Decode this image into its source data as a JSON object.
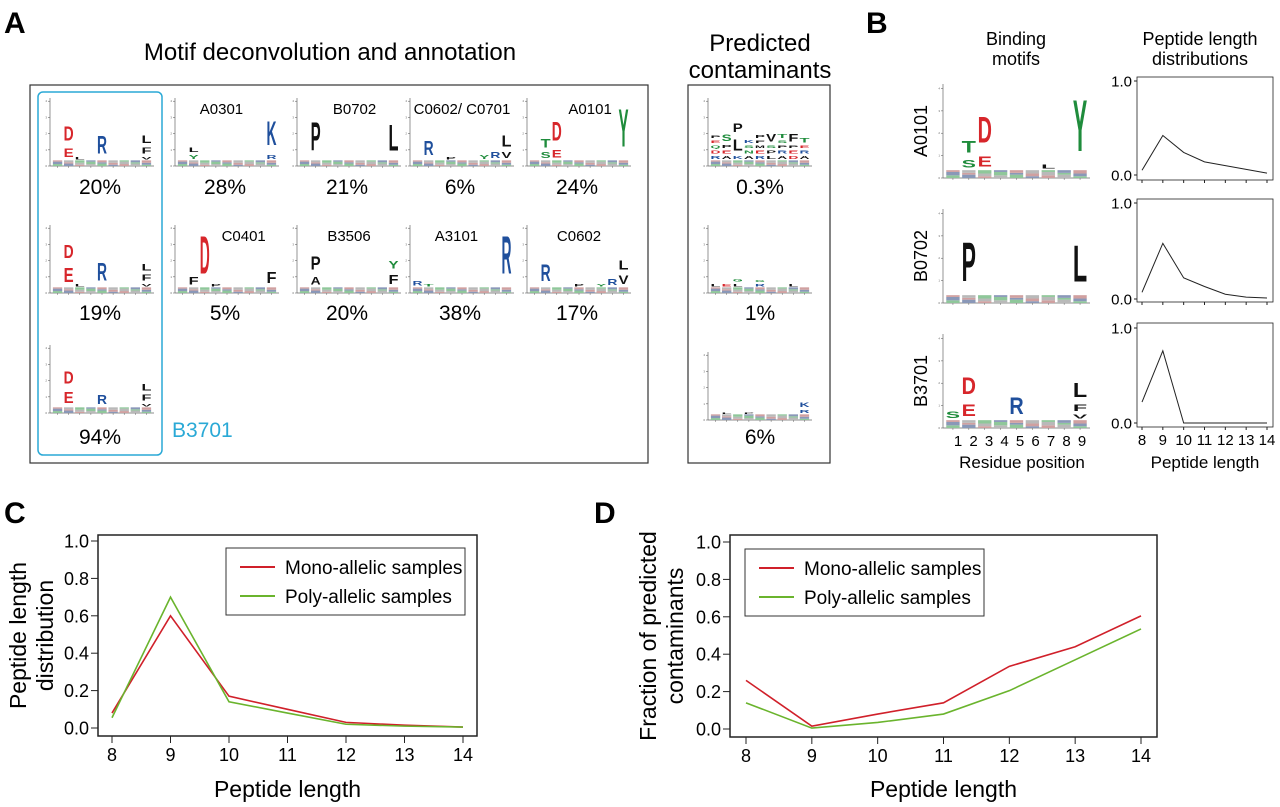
{
  "panel_labels": [
    "A",
    "B",
    "C",
    "D"
  ],
  "letter_colors": {
    "D": "#d7262b",
    "E": "#d7262b",
    "R": "#1f4f9c",
    "K": "#1f4f9c",
    "H": "#1f4f9c",
    "S": "#1f8c3c",
    "T": "#1f8c3c",
    "Y": "#1f8c3c",
    "N": "#1f8c3c",
    "Q": "#1f8c3c",
    "G": "#1f8c3c",
    "C": "#1f8c3c",
    "default": "#111111"
  },
  "highlight_color": "#2aa9d6",
  "logo_axis_ticks": [
    "0",
    "1",
    "2",
    "3",
    "4"
  ],
  "panel_A": {
    "title": "Motif deconvolution and annotation",
    "contaminants_title": [
      "Predicted",
      "contaminants"
    ],
    "highlighted_allele": "B3701",
    "logos": [
      {
        "allele": "",
        "percent": "20%",
        "letters": [
          [
            2,
            "E",
            0.9
          ],
          [
            2,
            "D",
            1.5
          ],
          [
            3,
            "L",
            0.3
          ],
          [
            5,
            "R",
            1.9
          ],
          [
            9,
            "V",
            0.3
          ],
          [
            9,
            "F",
            0.6
          ],
          [
            9,
            "L",
            0.8
          ]
        ]
      },
      {
        "allele": "A0301",
        "percent": "28%",
        "letters": [
          [
            2,
            "Y",
            0.4
          ],
          [
            2,
            "L",
            0.5
          ],
          [
            9,
            "R",
            0.4
          ],
          [
            9,
            "K",
            2.6
          ]
        ]
      },
      {
        "allele": "B0702",
        "percent": "21%",
        "letters": [
          [
            2,
            "P",
            3.0
          ],
          [
            9,
            "L",
            2.8
          ]
        ]
      },
      {
        "allele": "C0602/ C0701",
        "percent": "6%",
        "letters": [
          [
            2,
            "R",
            1.5
          ],
          [
            4,
            "P",
            0.3
          ],
          [
            7,
            "Y",
            0.4
          ],
          [
            8,
            "R",
            0.6
          ],
          [
            9,
            "V",
            0.6
          ],
          [
            9,
            "L",
            1.2
          ]
        ]
      },
      {
        "allele": "A0101",
        "percent": "24%",
        "letters": [
          [
            2,
            "S",
            0.6
          ],
          [
            2,
            "T",
            0.9
          ],
          [
            3,
            "E",
            0.8
          ],
          [
            3,
            "D",
            2.0
          ],
          [
            9,
            "Y",
            4.0
          ]
        ]
      },
      {
        "allele": "",
        "percent": "19%",
        "letters": [
          [
            2,
            "E",
            1.5
          ],
          [
            2,
            "D",
            1.4
          ],
          [
            3,
            "L",
            0.3
          ],
          [
            5,
            "R",
            1.9
          ],
          [
            9,
            "V",
            0.3
          ],
          [
            9,
            "F",
            0.6
          ],
          [
            9,
            "L",
            0.7
          ]
        ]
      },
      {
        "allele": "C0401",
        "percent": "5%",
        "letters": [
          [
            2,
            "F",
            0.8
          ],
          [
            3,
            "D",
            4.0
          ],
          [
            4,
            "P",
            0.3
          ],
          [
            9,
            "F",
            1.2
          ]
        ]
      },
      {
        "allele": "B3506",
        "percent": "20%",
        "letters": [
          [
            2,
            "A",
            0.8
          ],
          [
            2,
            "P",
            1.4
          ],
          [
            9,
            "F",
            1.0
          ],
          [
            9,
            "Y",
            0.8
          ]
        ]
      },
      {
        "allele": "A3101",
        "percent": "38%",
        "letters": [
          [
            1,
            "R",
            0.5
          ],
          [
            2,
            "T",
            0.3
          ],
          [
            9,
            "R",
            4.0
          ]
        ]
      },
      {
        "allele": "C0602",
        "percent": "17%",
        "letters": [
          [
            2,
            "R",
            1.8
          ],
          [
            5,
            "P",
            0.3
          ],
          [
            7,
            "Y",
            0.3
          ],
          [
            8,
            "R",
            0.6
          ],
          [
            9,
            "V",
            0.9
          ],
          [
            9,
            "L",
            1.0
          ]
        ]
      },
      {
        "allele": "",
        "percent": "94%",
        "letters": [
          [
            2,
            "E",
            1.2
          ],
          [
            2,
            "D",
            1.3
          ],
          [
            5,
            "R",
            1.0
          ],
          [
            9,
            "V",
            0.3
          ],
          [
            9,
            "F",
            0.6
          ],
          [
            9,
            "L",
            0.7
          ]
        ]
      }
    ],
    "contaminants": [
      {
        "percent": "0.3%",
        "letters": [
          [
            1,
            "R",
            0.35
          ],
          [
            1,
            "D",
            0.35
          ],
          [
            1,
            "Q",
            0.3
          ],
          [
            1,
            "E",
            0.3
          ],
          [
            1,
            "P",
            0.3
          ],
          [
            2,
            "A",
            0.35
          ],
          [
            2,
            "E",
            0.35
          ],
          [
            2,
            "P",
            0.35
          ],
          [
            2,
            "S",
            0.7
          ],
          [
            3,
            "K",
            0.35
          ],
          [
            3,
            "L",
            1.2
          ],
          [
            3,
            "P",
            0.9
          ],
          [
            4,
            "A",
            0.35
          ],
          [
            4,
            "N",
            0.35
          ],
          [
            4,
            "S",
            0.3
          ],
          [
            4,
            "K",
            0.35
          ],
          [
            5,
            "R",
            0.35
          ],
          [
            5,
            "E",
            0.35
          ],
          [
            5,
            "M",
            0.3
          ],
          [
            5,
            "F",
            0.3
          ],
          [
            5,
            "P",
            0.35
          ],
          [
            6,
            "L",
            0.35
          ],
          [
            6,
            "P",
            0.35
          ],
          [
            6,
            "S",
            0.3
          ],
          [
            6,
            "V",
            0.8
          ],
          [
            7,
            "A",
            0.35
          ],
          [
            7,
            "R",
            0.35
          ],
          [
            7,
            "P",
            0.3
          ],
          [
            7,
            "S",
            0.3
          ],
          [
            7,
            "T",
            0.4
          ],
          [
            8,
            "D",
            0.35
          ],
          [
            8,
            "E",
            0.35
          ],
          [
            8,
            "P",
            0.3
          ],
          [
            8,
            "F",
            0.8
          ],
          [
            9,
            "A",
            0.35
          ],
          [
            9,
            "R",
            0.35
          ],
          [
            9,
            "E",
            0.3
          ],
          [
            9,
            "T",
            0.5
          ]
        ]
      },
      {
        "percent": "1%",
        "letters": [
          [
            1,
            "L",
            0.3
          ],
          [
            2,
            "E",
            0.3
          ],
          [
            3,
            "L",
            0.3
          ],
          [
            3,
            "G",
            0.3
          ],
          [
            5,
            "R",
            0.3
          ],
          [
            5,
            "G",
            0.2
          ],
          [
            8,
            "L",
            0.3
          ]
        ]
      },
      {
        "percent": "6%",
        "letters": [
          [
            2,
            "L",
            0.15
          ],
          [
            4,
            "P",
            0.1
          ],
          [
            9,
            "R",
            0.35
          ],
          [
            9,
            "K",
            0.45
          ]
        ]
      }
    ]
  },
  "panel_B": {
    "col1_title": [
      "Binding",
      "motifs"
    ],
    "col2_title": [
      "Peptide length",
      "distributions"
    ],
    "rows": [
      {
        "allele": "A0101",
        "letters": [
          [
            2,
            "S",
            0.6
          ],
          [
            2,
            "T",
            0.9
          ],
          [
            3,
            "E",
            0.8
          ],
          [
            3,
            "D",
            2.0
          ],
          [
            7,
            "L",
            0.3
          ],
          [
            9,
            "Y",
            4.0
          ]
        ]
      },
      {
        "allele": "B0702",
        "letters": [
          [
            2,
            "P",
            3.0
          ],
          [
            9,
            "L",
            2.8
          ]
        ]
      },
      {
        "allele": "B3701",
        "letters": [
          [
            1,
            "S",
            0.5
          ],
          [
            2,
            "E",
            0.9
          ],
          [
            2,
            "D",
            1.3
          ],
          [
            5,
            "R",
            1.3
          ],
          [
            9,
            "V",
            0.3
          ],
          [
            9,
            "F",
            0.5
          ],
          [
            9,
            "L",
            1.1
          ]
        ]
      }
    ],
    "residue_ticks": [
      "1",
      "2",
      "3",
      "4",
      "5",
      "6",
      "7",
      "8",
      "9"
    ],
    "residue_xlabel": "Residue position"
  },
  "chart_data": [
    {
      "panel": "C",
      "type": "line",
      "xlabel": "Peptide length",
      "ylabel": [
        "Peptide length",
        "distribution"
      ],
      "x": [
        8,
        9,
        10,
        11,
        12,
        13,
        14
      ],
      "xticks": [
        "8",
        "9",
        "10",
        "11",
        "12",
        "13",
        "14"
      ],
      "ylim": [
        0,
        1
      ],
      "yticks": [
        "0.0",
        "0.2",
        "0.4",
        "0.6",
        "0.8",
        "1.0"
      ],
      "grid": false,
      "legend": "top-right",
      "series": [
        {
          "name": "Mono-allelic samples",
          "color": "#d0202a",
          "values": [
            0.08,
            0.6,
            0.17,
            0.1,
            0.03,
            0.015,
            0.005
          ]
        },
        {
          "name": "Poly-allelic samples",
          "color": "#6ab42d",
          "values": [
            0.055,
            0.7,
            0.14,
            0.08,
            0.02,
            0.01,
            0.005
          ]
        }
      ]
    },
    {
      "panel": "D",
      "type": "line",
      "xlabel": "Peptide length",
      "ylabel": [
        "Fraction of predicted",
        "contaminants"
      ],
      "x": [
        8,
        9,
        10,
        11,
        12,
        13,
        14
      ],
      "xticks": [
        "8",
        "9",
        "10",
        "11",
        "12",
        "13",
        "14"
      ],
      "ylim": [
        0,
        1
      ],
      "yticks": [
        "0.0",
        "0.2",
        "0.4",
        "0.6",
        "0.8",
        "1.0"
      ],
      "grid": false,
      "legend": "top-left",
      "series": [
        {
          "name": "Mono-allelic samples",
          "color": "#d0202a",
          "values": [
            0.26,
            0.015,
            0.08,
            0.14,
            0.335,
            0.44,
            0.605
          ]
        },
        {
          "name": "Poly-allelic samples",
          "color": "#6ab42d",
          "values": [
            0.14,
            0.005,
            0.035,
            0.08,
            0.205,
            0.37,
            0.535
          ]
        }
      ]
    },
    {
      "panel": "B",
      "allele": "A0101",
      "type": "line",
      "x": [
        8,
        9,
        10,
        11,
        12,
        13,
        14
      ],
      "ylim": [
        0,
        1
      ],
      "yticks": [
        "0.0",
        "1.0"
      ],
      "series": [
        {
          "color": "#222222",
          "values": [
            0.05,
            0.42,
            0.24,
            0.14,
            0.1,
            0.06,
            0.02
          ]
        }
      ]
    },
    {
      "panel": "B",
      "allele": "B0702",
      "type": "line",
      "x": [
        8,
        9,
        10,
        11,
        12,
        13,
        14
      ],
      "ylim": [
        0,
        1
      ],
      "yticks": [
        "0.0",
        "1.0"
      ],
      "series": [
        {
          "color": "#222222",
          "values": [
            0.07,
            0.58,
            0.22,
            0.13,
            0.05,
            0.02,
            0.01
          ]
        }
      ]
    },
    {
      "panel": "B",
      "allele": "B3701",
      "type": "line",
      "x": [
        8,
        9,
        10,
        11,
        12,
        13,
        14
      ],
      "ylim": [
        0,
        1
      ],
      "yticks": [
        "0.0",
        "1.0"
      ],
      "xticks": [
        "8",
        "9",
        "10",
        "11",
        "12",
        "13",
        "14"
      ],
      "xlabel": "Peptide length",
      "series": [
        {
          "color": "#222222",
          "values": [
            0.22,
            0.76,
            0.0,
            0.0,
            0.0,
            0.0,
            0.0
          ]
        }
      ]
    }
  ]
}
